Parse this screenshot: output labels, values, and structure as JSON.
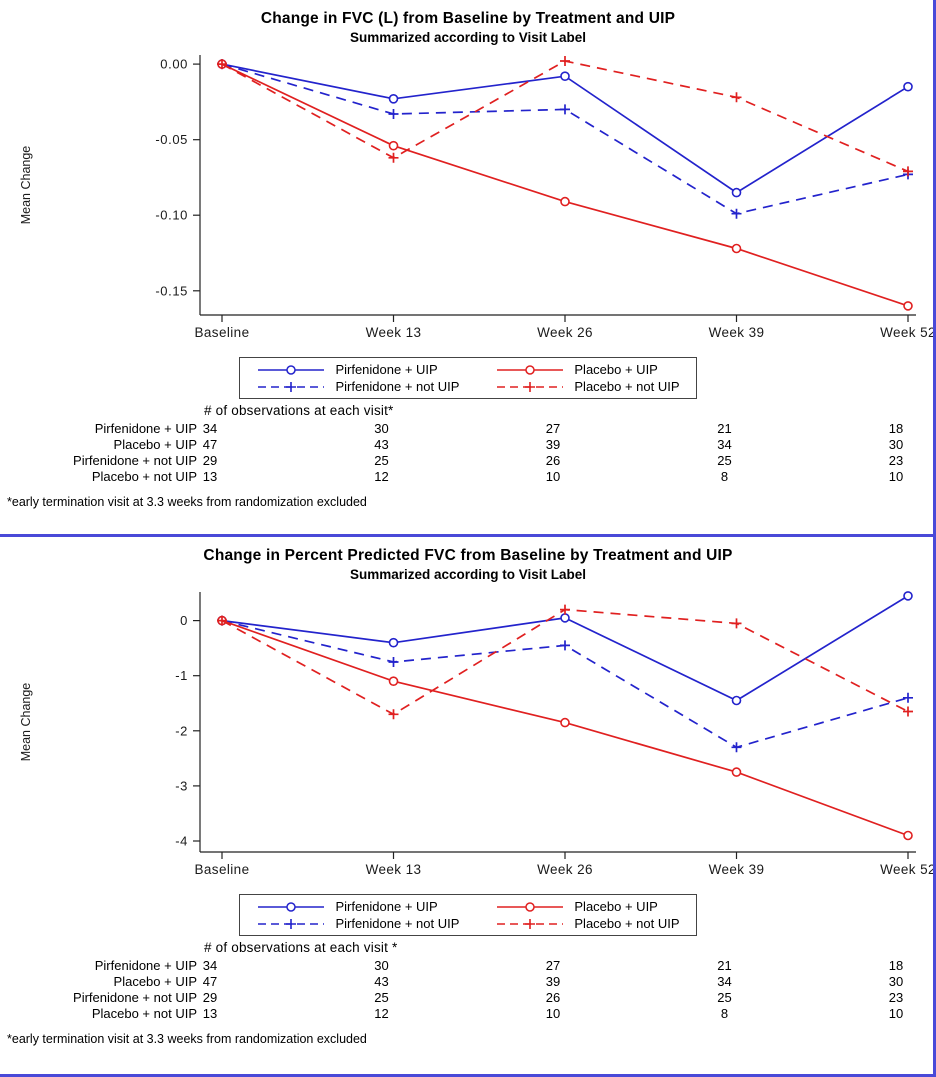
{
  "colors": {
    "pirfenidone_blue": "#2323cc",
    "placebo_red": "#e02020",
    "page_border_blue": "#4949d8",
    "axis": "#222222"
  },
  "chart_data": [
    {
      "type": "line",
      "title": "Change in FVC (L) from Baseline by Treatment and UIP",
      "subtitle": "Summarized according to Visit Label",
      "xlabel": "",
      "ylabel": "Mean Change",
      "categories": [
        "Baseline",
        "Week 13",
        "Week 26",
        "Week 39",
        "Week 52"
      ],
      "ylim": [
        -0.166,
        0.006
      ],
      "yticks": [
        0,
        -0.05,
        -0.1,
        -0.15
      ],
      "ytick_labels": [
        "0.00",
        "-0.05",
        "-0.10",
        "-0.15"
      ],
      "grid": false,
      "legend_position": "bottom",
      "series": [
        {
          "name": "Pirfenidone + UIP",
          "color": "#2323cc",
          "line": "solid",
          "marker": "circle",
          "values": [
            0,
            -0.023,
            -0.008,
            -0.085,
            -0.015
          ]
        },
        {
          "name": "Pirfenidone + not UIP",
          "color": "#2323cc",
          "line": "dashed",
          "marker": "plus",
          "values": [
            0,
            -0.033,
            -0.03,
            -0.099,
            -0.073
          ]
        },
        {
          "name": "Placebo + UIP",
          "color": "#e02020",
          "line": "solid",
          "marker": "circle",
          "values": [
            0,
            -0.054,
            -0.091,
            -0.122,
            -0.16
          ]
        },
        {
          "name": "Placebo + not UIP",
          "color": "#e02020",
          "line": "dashed",
          "marker": "plus",
          "values": [
            0,
            -0.062,
            0.002,
            -0.022,
            -0.071
          ]
        }
      ],
      "observations": {
        "header": "# of observations at each visit*",
        "rows": [
          {
            "label": "Pirfenidone + UIP",
            "values": [
              "34",
              "30",
              "27",
              "21",
              "18"
            ]
          },
          {
            "label": "Placebo + UIP",
            "values": [
              "47",
              "43",
              "39",
              "34",
              "30"
            ]
          },
          {
            "label": "Pirfenidone + not UIP",
            "values": [
              "29",
              "25",
              "26",
              "25",
              "23"
            ]
          },
          {
            "label": "Placebo + not UIP",
            "values": [
              "13",
              "12",
              "10",
              "8",
              "10"
            ]
          }
        ]
      },
      "footnote": "*early termination visit at 3.3 weeks from randomization excluded"
    },
    {
      "type": "line",
      "title": "Change in Percent Predicted FVC from Baseline by Treatment and UIP",
      "subtitle": "Summarized according to Visit Label",
      "xlabel": "",
      "ylabel": "Mean Change",
      "categories": [
        "Baseline",
        "Week 13",
        "Week 26",
        "Week 39",
        "Week 52"
      ],
      "ylim": [
        -4.2,
        0.52
      ],
      "yticks": [
        0,
        -1,
        -2,
        -3,
        -4
      ],
      "ytick_labels": [
        "0",
        "-1",
        "-2",
        "-3",
        "-4"
      ],
      "grid": false,
      "legend_position": "bottom",
      "series": [
        {
          "name": "Pirfenidone + UIP",
          "color": "#2323cc",
          "line": "solid",
          "marker": "circle",
          "values": [
            0,
            -0.4,
            0.05,
            -1.45,
            0.45
          ]
        },
        {
          "name": "Pirfenidone + not UIP",
          "color": "#2323cc",
          "line": "dashed",
          "marker": "plus",
          "values": [
            0,
            -0.75,
            -0.45,
            -2.3,
            -1.4
          ]
        },
        {
          "name": "Placebo + UIP",
          "color": "#e02020",
          "line": "solid",
          "marker": "circle",
          "values": [
            0,
            -1.1,
            -1.85,
            -2.75,
            -3.9
          ]
        },
        {
          "name": "Placebo + not UIP",
          "color": "#e02020",
          "line": "dashed",
          "marker": "plus",
          "values": [
            0,
            -1.7,
            0.2,
            -0.05,
            -1.65
          ]
        }
      ],
      "observations": {
        "header": "# of observations at each visit *",
        "rows": [
          {
            "label": "Pirfenidone + UIP",
            "values": [
              "34",
              "30",
              "27",
              "21",
              "18"
            ]
          },
          {
            "label": "Placebo + UIP",
            "values": [
              "47",
              "43",
              "39",
              "34",
              "30"
            ]
          },
          {
            "label": "Pirfenidone + not UIP",
            "values": [
              "29",
              "25",
              "26",
              "25",
              "23"
            ]
          },
          {
            "label": "Placebo + not UIP",
            "values": [
              "13",
              "12",
              "10",
              "8",
              "10"
            ]
          }
        ]
      },
      "footnote": "*early termination visit at 3.3 weeks from randomization excluded"
    }
  ]
}
